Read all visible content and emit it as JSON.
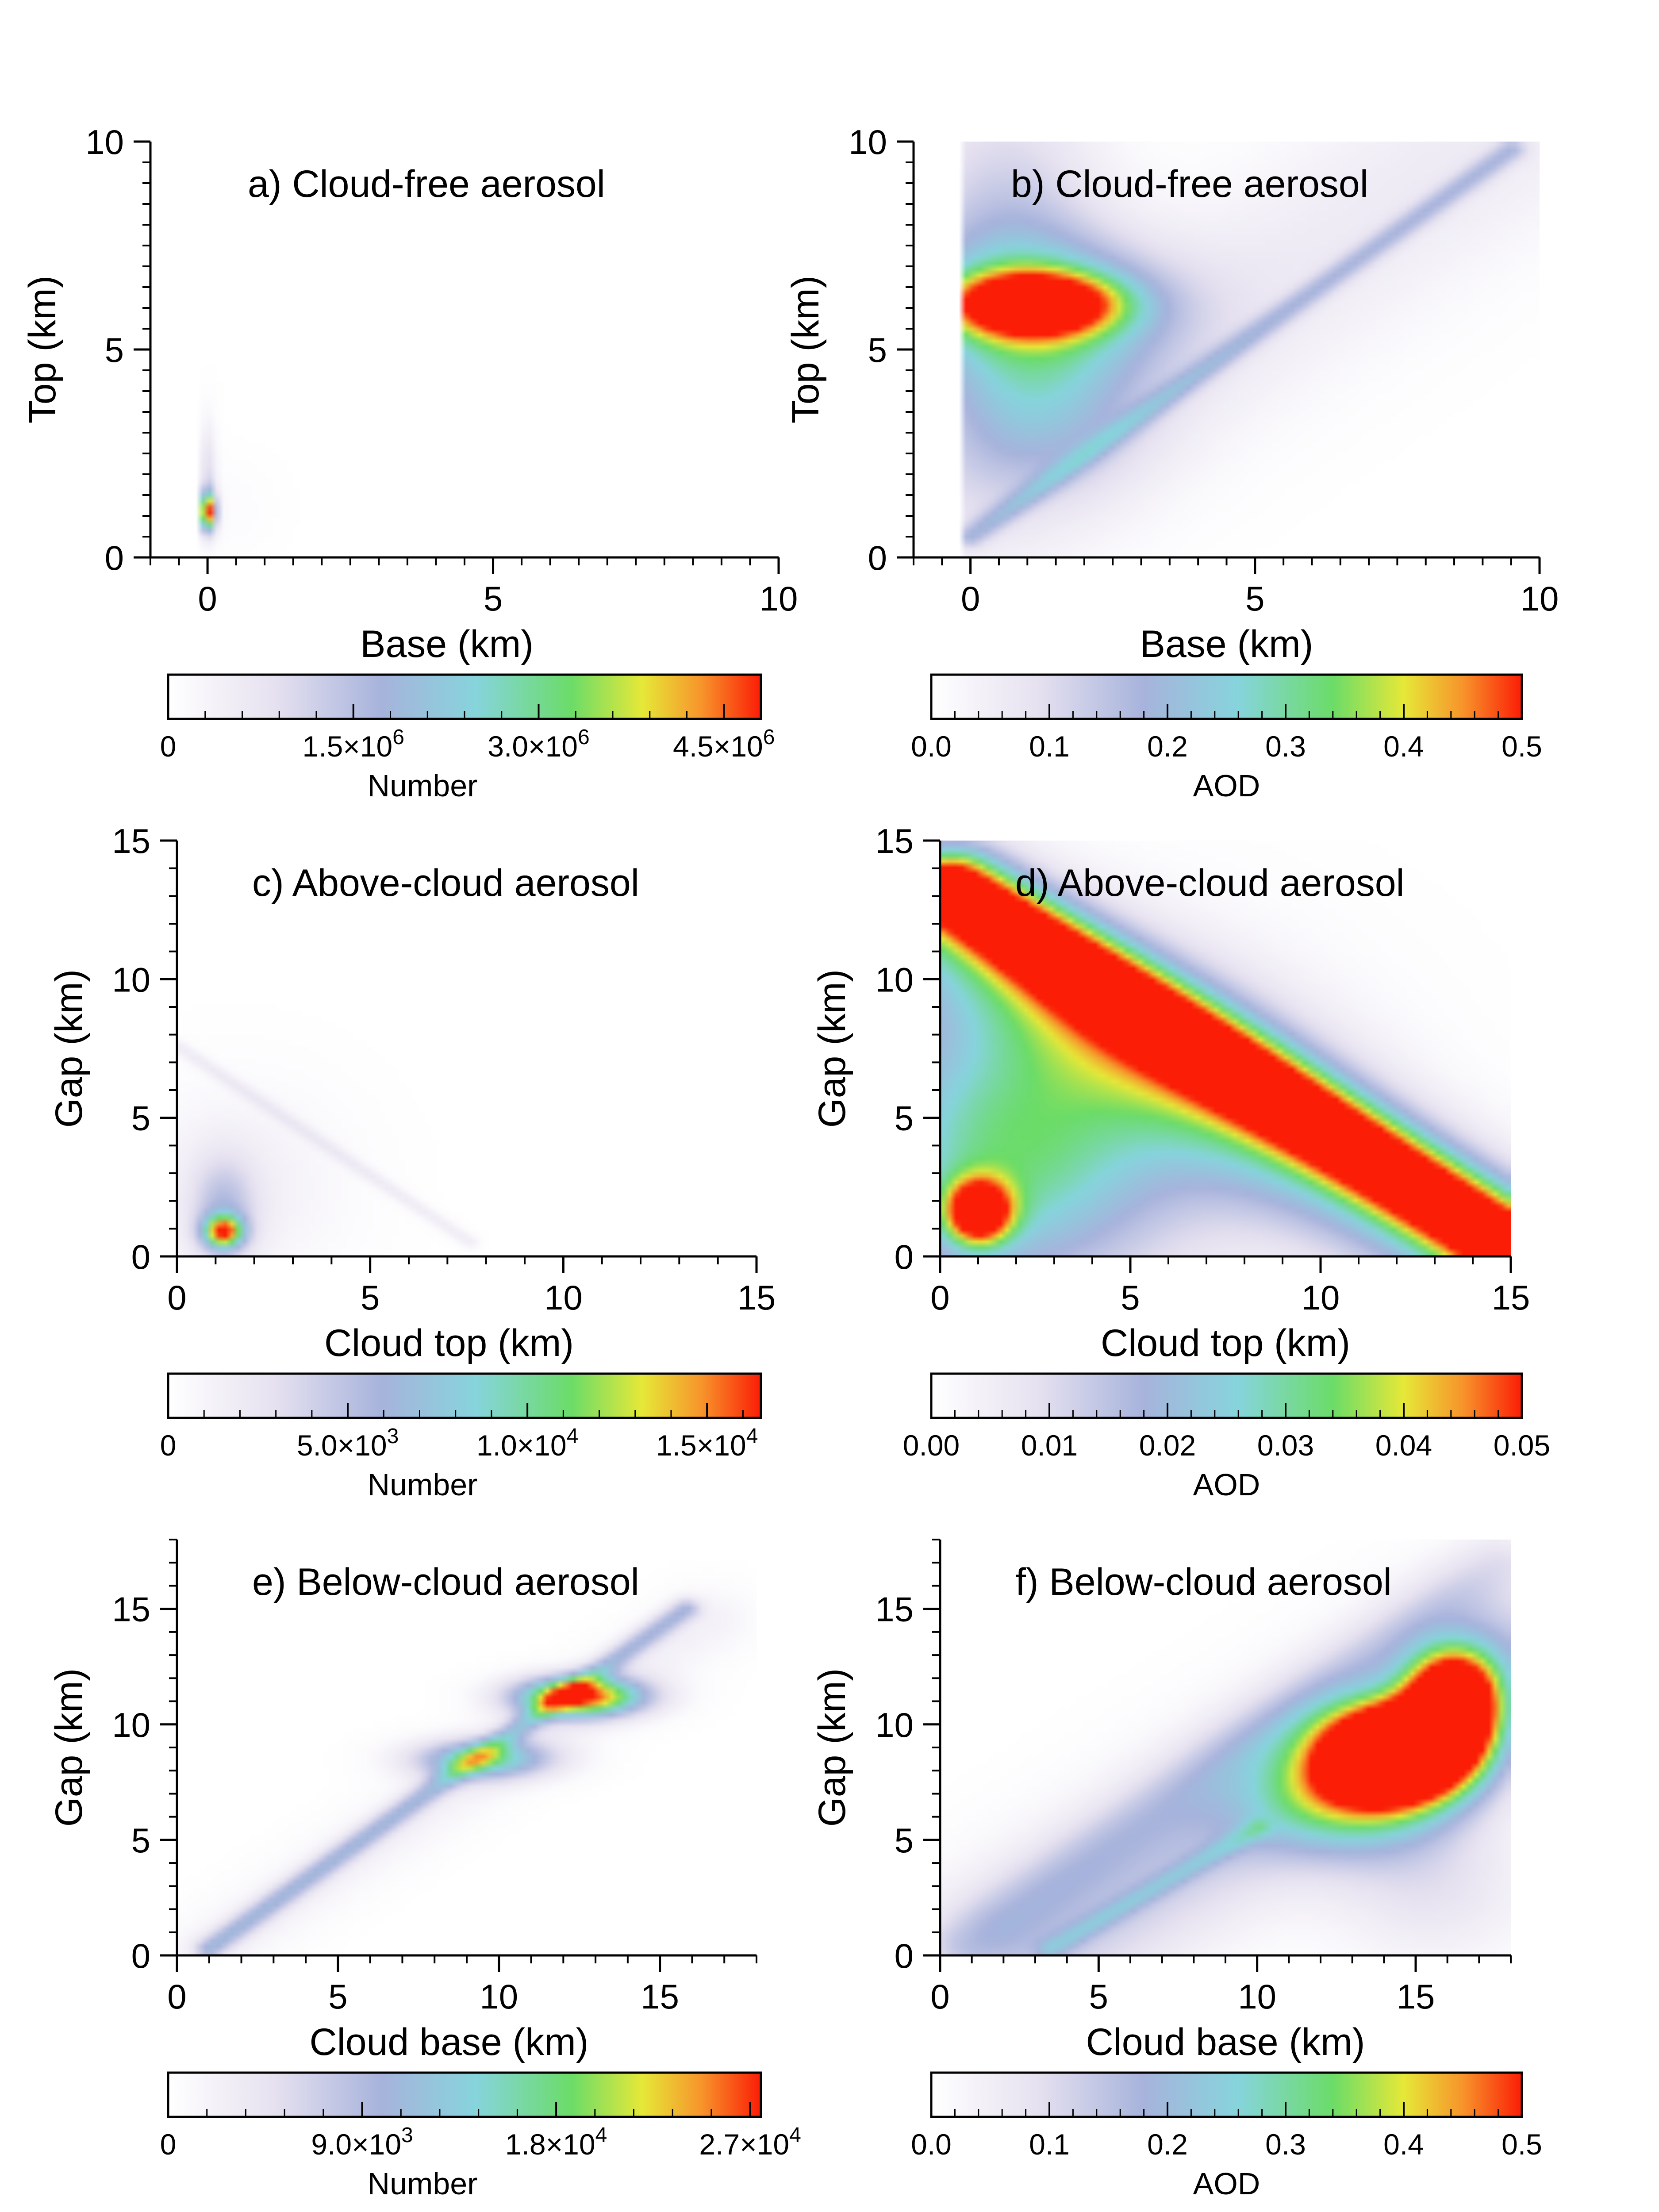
{
  "chart_data": [
    {
      "panel": "a",
      "type": "heatmap",
      "title": "a) Cloud-free aerosol",
      "xlabel": "Base (km)",
      "ylabel": "Top (km)",
      "xlim": [
        -1,
        10
      ],
      "ylim": [
        0,
        10
      ],
      "xticks": [
        0,
        5,
        10
      ],
      "yticks": [
        0,
        5,
        10
      ],
      "xtick_labels": [
        "0",
        "5",
        "10"
      ],
      "ytick_labels": [
        "0",
        "5",
        "10"
      ],
      "colorbar": {
        "label": "Number",
        "range": [
          0,
          4800000
        ],
        "ticks": [
          0,
          1500000,
          3000000,
          4500000
        ],
        "tick_labels": [
          "0",
          "1.5×10^6",
          "3.0×10^6",
          "4.5×10^6"
        ]
      },
      "blobs": [
        {
          "x": 0.0,
          "y": 1.1,
          "sx": 0.1,
          "sy": 0.32,
          "value": 4500000
        },
        {
          "x": 0.0,
          "y": 2.0,
          "sx": 0.1,
          "sy": 0.9,
          "value": 900000
        },
        {
          "x": 0.3,
          "y": 1.2,
          "sx": 0.6,
          "sy": 0.8,
          "value": 120000
        }
      ],
      "ridges": []
    },
    {
      "panel": "b",
      "type": "heatmap",
      "title": "b) Cloud-free aerosol",
      "xlabel": "Base (km)",
      "ylabel": "Top (km)",
      "xlim": [
        -1,
        10
      ],
      "ylim": [
        0,
        10
      ],
      "xticks": [
        0,
        5,
        10
      ],
      "yticks": [
        0,
        5,
        10
      ],
      "xtick_labels": [
        "0",
        "5",
        "10"
      ],
      "ytick_labels": [
        "0",
        "5",
        "10"
      ],
      "colorbar": {
        "label": "AOD",
        "range": [
          0,
          0.5
        ],
        "ticks": [
          0,
          0.1,
          0.2,
          0.3,
          0.4,
          0.5
        ],
        "tick_labels": [
          "0.0",
          "0.1",
          "0.2",
          "0.3",
          "0.4",
          "0.5"
        ]
      },
      "blobs": [
        {
          "x": 1.1,
          "y": 6.1,
          "sx": 1.0,
          "sy": 0.5,
          "value": 0.48
        },
        {
          "x": 1.3,
          "y": 6.0,
          "sx": 1.6,
          "sy": 1.2,
          "value": 0.22
        },
        {
          "x": 0.6,
          "y": 7.5,
          "sx": 1.2,
          "sy": 2.8,
          "value": 0.14
        },
        {
          "x": 1.2,
          "y": 3.5,
          "sx": 1.3,
          "sy": 1.4,
          "value": 0.12
        }
      ],
      "ridges": [
        {
          "x0": 0.0,
          "y0": 0.5,
          "x1": 9.5,
          "y1": 9.8,
          "width": 0.18,
          "value": 0.12
        },
        {
          "x0": 0.0,
          "y0": 1.5,
          "x1": 9.0,
          "y1": 10.0,
          "width": 1.6,
          "value": 0.06
        }
      ]
    },
    {
      "panel": "c",
      "type": "heatmap",
      "title": "c) Above-cloud aerosol",
      "xlabel": "Cloud top (km)",
      "ylabel": "Gap (km)",
      "xlim": [
        0,
        15
      ],
      "ylim": [
        0,
        15
      ],
      "xticks": [
        0,
        5,
        10,
        15
      ],
      "yticks": [
        0,
        5,
        10,
        15
      ],
      "xtick_labels": [
        "0",
        "5",
        "10",
        "15"
      ],
      "ytick_labels": [
        "0",
        "5",
        "10",
        "15"
      ],
      "colorbar": {
        "label": "Number",
        "range": [
          0,
          16500
        ],
        "ticks": [
          0,
          5000,
          10000,
          15000
        ],
        "tick_labels": [
          "0",
          "5.0×10^3",
          "1.0×10^4",
          "1.5×10^4"
        ]
      },
      "blobs": [
        {
          "x": 1.2,
          "y": 0.9,
          "sx": 0.35,
          "sy": 0.4,
          "value": 13000
        },
        {
          "x": 1.2,
          "y": 1.6,
          "sx": 0.6,
          "sy": 1.4,
          "value": 4200
        },
        {
          "x": 1.5,
          "y": 2.5,
          "sx": 2.0,
          "sy": 2.5,
          "value": 1500
        }
      ],
      "ridges": [
        {
          "x0": 0.0,
          "y0": 7.6,
          "x1": 7.6,
          "y1": 0.5,
          "width": 0.15,
          "value": 1800
        }
      ]
    },
    {
      "panel": "d",
      "type": "heatmap",
      "title": "d) Above-cloud aerosol",
      "xlabel": "Cloud top (km)",
      "ylabel": "Gap (km)",
      "xlim": [
        0,
        15
      ],
      "ylim": [
        0,
        15
      ],
      "xticks": [
        0,
        5,
        10,
        15
      ],
      "yticks": [
        0,
        5,
        10,
        15
      ],
      "xtick_labels": [
        "0",
        "5",
        "10",
        "15"
      ],
      "ytick_labels": [
        "0",
        "5",
        "10",
        "15"
      ],
      "colorbar": {
        "label": "AOD",
        "range": [
          0,
          0.05
        ],
        "ticks": [
          0,
          0.01,
          0.02,
          0.03,
          0.04,
          0.05
        ],
        "tick_labels": [
          "0.00",
          "0.01",
          "0.02",
          "0.03",
          "0.04",
          "0.05"
        ]
      },
      "blobs": [
        {
          "x": 1.0,
          "y": 1.6,
          "sx": 0.6,
          "sy": 0.8,
          "value": 0.05
        },
        {
          "x": 1.5,
          "y": 3.5,
          "sx": 2.5,
          "sy": 3.5,
          "value": 0.02
        },
        {
          "x": 4.0,
          "y": 5.0,
          "sx": 4.0,
          "sy": 4.0,
          "value": 0.016
        }
      ],
      "ridges": [
        {
          "x0": 0.3,
          "y0": 13.3,
          "x1": 14.5,
          "y1": 0.8,
          "width": 0.9,
          "value": 0.052
        },
        {
          "x0": 0.3,
          "y0": 12.0,
          "x1": 14.0,
          "y1": 0.5,
          "width": 1.8,
          "value": 0.025
        }
      ]
    },
    {
      "panel": "e",
      "type": "heatmap",
      "title": "e) Below-cloud aerosol",
      "xlabel": "Cloud base (km)",
      "ylabel": "Gap (km)",
      "xlim": [
        0,
        18
      ],
      "ylim": [
        0,
        18
      ],
      "xticks": [
        0,
        5,
        10,
        15
      ],
      "yticks": [
        0,
        5,
        10,
        15
      ],
      "xtick_labels": [
        "0",
        "5",
        "10",
        "15"
      ],
      "ytick_labels": [
        "0",
        "5",
        "10",
        "15"
      ],
      "colorbar": {
        "label": "Number",
        "range": [
          0,
          27500
        ],
        "ticks": [
          0,
          9000,
          18000,
          27000
        ],
        "tick_labels": [
          "0",
          "9.0×10^3",
          "1.8×10^4",
          "2.7×10^4"
        ]
      },
      "blobs": [
        {
          "x": 12.5,
          "y": 11.2,
          "sx": 1.4,
          "sy": 0.6,
          "value": 26000
        },
        {
          "x": 9.5,
          "y": 8.5,
          "sx": 1.5,
          "sy": 0.6,
          "value": 15000
        }
      ],
      "ridges": [
        {
          "x0": 1.0,
          "y0": 0.3,
          "x1": 15.8,
          "y1": 15.0,
          "width": 0.32,
          "value": 8500
        },
        {
          "x0": 1.0,
          "y0": 0.2,
          "x1": 16.5,
          "y1": 14.5,
          "width": 1.0,
          "value": 2200
        }
      ]
    },
    {
      "panel": "f",
      "type": "heatmap",
      "title": "f) Below-cloud aerosol",
      "xlabel": "Cloud base (km)",
      "ylabel": "Gap (km)",
      "xlim": [
        0,
        18
      ],
      "ylim": [
        0,
        18
      ],
      "xticks": [
        0,
        5,
        10,
        15
      ],
      "yticks": [
        0,
        5,
        10,
        15
      ],
      "xtick_labels": [
        "0",
        "5",
        "10",
        "15"
      ],
      "ytick_labels": [
        "0",
        "5",
        "10",
        "15"
      ],
      "colorbar": {
        "label": "AOD",
        "range": [
          0,
          0.5
        ],
        "ticks": [
          0,
          0.1,
          0.2,
          0.3,
          0.4,
          0.5
        ],
        "tick_labels": [
          "0.0",
          "0.1",
          "0.2",
          "0.3",
          "0.4",
          "0.5"
        ]
      },
      "blobs": [
        {
          "x": 14.5,
          "y": 8.8,
          "sx": 1.6,
          "sy": 1.4,
          "value": 0.9
        },
        {
          "x": 16.2,
          "y": 11.0,
          "sx": 1.0,
          "sy": 1.5,
          "value": 0.7
        },
        {
          "x": 13.0,
          "y": 7.0,
          "sx": 2.2,
          "sy": 1.8,
          "value": 0.28
        },
        {
          "x": 15.5,
          "y": 3.0,
          "sx": 2.2,
          "sy": 2.2,
          "value": 0.08
        }
      ],
      "ridges": [
        {
          "x0": 0.8,
          "y0": 0.5,
          "x1": 17.5,
          "y1": 17.0,
          "width": 0.9,
          "value": 0.07
        },
        {
          "x0": 3.0,
          "y0": 0.5,
          "x1": 17.5,
          "y1": 13.0,
          "width": 2.3,
          "value": 0.14
        },
        {
          "x0": 3.5,
          "y0": 0.3,
          "x1": 10.0,
          "y1": 5.5,
          "width": 0.3,
          "value": 0.1
        }
      ]
    }
  ]
}
